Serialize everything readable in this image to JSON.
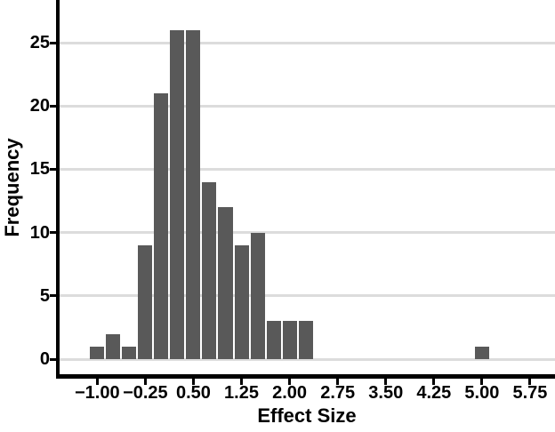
{
  "chart_data": {
    "type": "bar",
    "subtype": "histogram",
    "title": "",
    "xlabel": "Effect Size",
    "ylabel": "Frequency",
    "bin_width": 0.25,
    "total_n": 141,
    "bins": [
      {
        "center": -1.0,
        "count": 1
      },
      {
        "center": -0.75,
        "count": 2
      },
      {
        "center": -0.5,
        "count": 1
      },
      {
        "center": -0.25,
        "count": 9
      },
      {
        "center": 0.0,
        "count": 21
      },
      {
        "center": 0.25,
        "count": 26
      },
      {
        "center": 0.5,
        "count": 26
      },
      {
        "center": 0.75,
        "count": 14
      },
      {
        "center": 1.0,
        "count": 12
      },
      {
        "center": 1.25,
        "count": 9
      },
      {
        "center": 1.5,
        "count": 10
      },
      {
        "center": 1.75,
        "count": 3
      },
      {
        "center": 2.0,
        "count": 3
      },
      {
        "center": 2.25,
        "count": 3
      },
      {
        "center": 5.0,
        "count": 1
      }
    ],
    "x_ticks": [
      {
        "value": -1.0,
        "label": "−1.00"
      },
      {
        "value": -0.25,
        "label": "−0.25"
      },
      {
        "value": 0.5,
        "label": "0.50"
      },
      {
        "value": 1.25,
        "label": "1.25"
      },
      {
        "value": 2.0,
        "label": "2.00"
      },
      {
        "value": 2.75,
        "label": "2.75"
      },
      {
        "value": 3.5,
        "label": "3.50"
      },
      {
        "value": 4.25,
        "label": "4.25"
      },
      {
        "value": 5.0,
        "label": "5.00"
      },
      {
        "value": 5.75,
        "label": "5.75"
      }
    ],
    "y_ticks": [
      {
        "value": 0,
        "label": "0"
      },
      {
        "value": 5,
        "label": "5"
      },
      {
        "value": 10,
        "label": "10"
      },
      {
        "value": 15,
        "label": "15"
      },
      {
        "value": 20,
        "label": "20"
      },
      {
        "value": 25,
        "label": "25"
      }
    ],
    "xlim": [
      -1.6,
      6.15
    ],
    "ylim": [
      0,
      28.3
    ],
    "grid": "horizontal-major-only",
    "legend": "none",
    "colors": {
      "bar_fill": "#595959",
      "gridline": "#dcdcdc",
      "axis": "#000000",
      "text": "#000000",
      "background": "#ffffff"
    }
  }
}
